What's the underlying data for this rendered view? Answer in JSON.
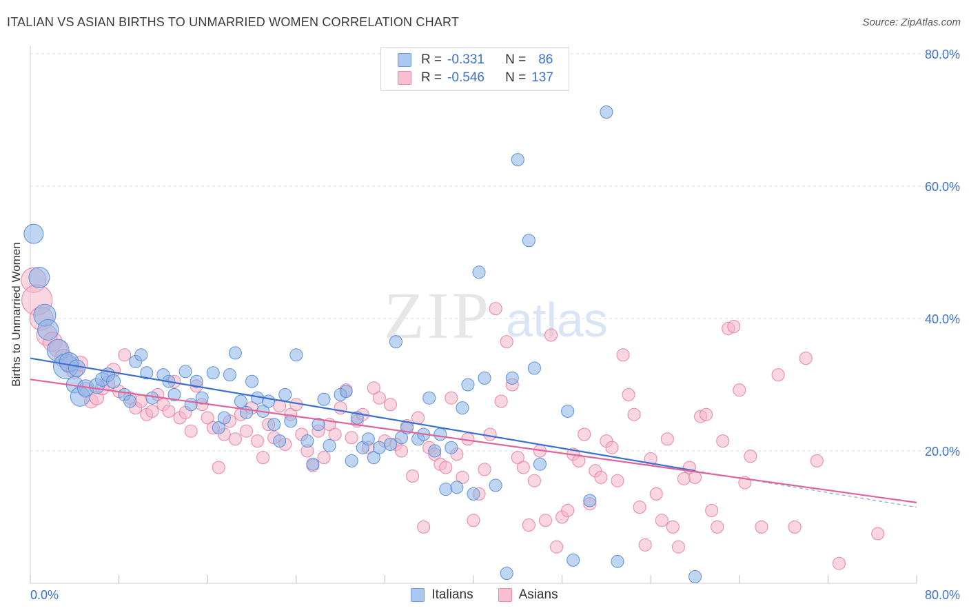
{
  "header": {
    "title": "ITALIAN VS ASIAN BIRTHS TO UNMARRIED WOMEN CORRELATION CHART",
    "source": "Source: ZipAtlas.com"
  },
  "watermark": {
    "zip": "ZIP",
    "atlas": "atlas"
  },
  "legend": {
    "r_label": "R =",
    "n_label": "N =",
    "rows": [
      {
        "r": "-0.331",
        "n": "86",
        "color": "#aac8f2",
        "border": "#6d9be0"
      },
      {
        "r": "-0.546",
        "n": "137",
        "color": "#f7bfd0",
        "border": "#e68aa8"
      }
    ]
  },
  "chart_data": {
    "type": "scatter",
    "title": "ITALIAN VS ASIAN BIRTHS TO UNMARRIED WOMEN CORRELATION CHART",
    "ylabel": "Births to Unmarried Women",
    "xlabel": "",
    "xlim": [
      0,
      80
    ],
    "ylim": [
      0,
      80
    ],
    "x_tick_labels": [
      "0.0%",
      "80.0%"
    ],
    "y_tick_labels": [
      "20.0%",
      "40.0%",
      "60.0%",
      "80.0%"
    ],
    "y_ticks": [
      20,
      40,
      60,
      80
    ],
    "grid": "horizontal dashed",
    "legend_position": "top-center",
    "series": [
      {
        "name": "Italians",
        "color": "#8bb4ea",
        "stroke": "#5d8fd8",
        "line_color": "#3a6fd0",
        "trend": {
          "x0": 0,
          "y0": 34.0,
          "x1": 60,
          "y1": 17.0,
          "dashed_to_x": 80,
          "dashed_to_y": 11.5
        },
        "points": [
          [
            0.3,
            52.8,
            14
          ],
          [
            0.8,
            46.2,
            15
          ],
          [
            1.3,
            40.5,
            16
          ],
          [
            1.6,
            38.3,
            15
          ],
          [
            2.5,
            35.2,
            16
          ],
          [
            3.2,
            32.8,
            18
          ],
          [
            3.5,
            33.4,
            14
          ],
          [
            4.0,
            30.0,
            12
          ],
          [
            4.2,
            32.5,
            12
          ],
          [
            4.5,
            28.2,
            14
          ],
          [
            5.0,
            29.5,
            12
          ],
          [
            6.0,
            29.8,
            11
          ],
          [
            6.5,
            30.8,
            10
          ],
          [
            7.0,
            31.5,
            10
          ],
          [
            7.5,
            30.5,
            10
          ],
          [
            8.5,
            28.5,
            9
          ],
          [
            9.0,
            27.5,
            9
          ],
          [
            9.5,
            33.5,
            9
          ],
          [
            10.0,
            34.5,
            9
          ],
          [
            10.5,
            31.8,
            9
          ],
          [
            11.0,
            28.0,
            9
          ],
          [
            12.0,
            31.5,
            9
          ],
          [
            12.5,
            30.5,
            9
          ],
          [
            13.0,
            28.5,
            9
          ],
          [
            14.0,
            32.0,
            9
          ],
          [
            14.5,
            27.0,
            9
          ],
          [
            15.0,
            30.5,
            9
          ],
          [
            15.5,
            28.0,
            9
          ],
          [
            16.5,
            31.8,
            9
          ],
          [
            17.0,
            23.5,
            9
          ],
          [
            17.5,
            25.0,
            9
          ],
          [
            18.0,
            31.5,
            9
          ],
          [
            18.5,
            34.8,
            9
          ],
          [
            19.0,
            27.5,
            9
          ],
          [
            19.5,
            25.8,
            9
          ],
          [
            20.0,
            30.5,
            9
          ],
          [
            20.5,
            28.0,
            9
          ],
          [
            21.0,
            26.0,
            9
          ],
          [
            21.5,
            27.5,
            9
          ],
          [
            22.0,
            24.0,
            9
          ],
          [
            22.5,
            21.5,
            9
          ],
          [
            23.0,
            28.5,
            9
          ],
          [
            23.5,
            24.5,
            9
          ],
          [
            24.0,
            34.5,
            9
          ],
          [
            25.0,
            21.5,
            9
          ],
          [
            25.5,
            18.0,
            9
          ],
          [
            26.0,
            24.0,
            9
          ],
          [
            26.5,
            27.8,
            9
          ],
          [
            27.0,
            20.8,
            9
          ],
          [
            28.0,
            28.5,
            9
          ],
          [
            28.5,
            29.0,
            9
          ],
          [
            29.0,
            18.5,
            9
          ],
          [
            29.5,
            25.0,
            9
          ],
          [
            30.0,
            20.5,
            9
          ],
          [
            30.5,
            21.8,
            9
          ],
          [
            31.0,
            19.0,
            9
          ],
          [
            31.5,
            20.5,
            9
          ],
          [
            32.5,
            21.0,
            9
          ],
          [
            33.0,
            36.5,
            9
          ],
          [
            33.5,
            22.0,
            9
          ],
          [
            34.0,
            23.5,
            9
          ],
          [
            35.0,
            21.8,
            9
          ],
          [
            35.5,
            22.5,
            9
          ],
          [
            36.0,
            28.0,
            9
          ],
          [
            36.5,
            20.0,
            9
          ],
          [
            37.0,
            22.5,
            9
          ],
          [
            37.5,
            14.2,
            9
          ],
          [
            38.0,
            20.5,
            9
          ],
          [
            38.5,
            14.5,
            9
          ],
          [
            39.0,
            26.5,
            9
          ],
          [
            39.5,
            30.0,
            9
          ],
          [
            40.0,
            13.5,
            9
          ],
          [
            40.5,
            47.0,
            9
          ],
          [
            41.0,
            31.0,
            9
          ],
          [
            42.0,
            14.8,
            9
          ],
          [
            43.0,
            1.5,
            9
          ],
          [
            43.5,
            31.0,
            9
          ],
          [
            44.0,
            64.0,
            9
          ],
          [
            45.0,
            51.8,
            9
          ],
          [
            45.5,
            32.5,
            9
          ],
          [
            46.0,
            18.0,
            9
          ],
          [
            48.5,
            26.0,
            9
          ],
          [
            49.0,
            3.5,
            9
          ],
          [
            50.5,
            12.5,
            9
          ],
          [
            52.0,
            71.2,
            9
          ],
          [
            53.0,
            3.3,
            9
          ],
          [
            60.0,
            1.0,
            9
          ]
        ]
      },
      {
        "name": "Asians",
        "color": "#f5b5c9",
        "stroke": "#e784a4",
        "line_color": "#e0649a",
        "trend": {
          "x0": 0,
          "y0": 30.8,
          "x1": 80,
          "y1": 12.2
        },
        "points": [
          [
            0.3,
            45.8,
            18
          ],
          [
            0.6,
            42.8,
            22
          ],
          [
            1.0,
            40.0,
            17
          ],
          [
            1.5,
            37.5,
            15
          ],
          [
            2.0,
            36.5,
            14
          ],
          [
            2.5,
            35.5,
            13
          ],
          [
            3.0,
            34.0,
            13
          ],
          [
            3.5,
            33.0,
            12
          ],
          [
            4.0,
            32.2,
            12
          ],
          [
            4.5,
            33.2,
            11
          ],
          [
            5.0,
            29.2,
            11
          ],
          [
            5.5,
            27.5,
            10
          ],
          [
            6.0,
            28.0,
            10
          ],
          [
            6.5,
            29.5,
            10
          ],
          [
            7.0,
            30.2,
            10
          ],
          [
            7.5,
            32.2,
            10
          ],
          [
            8.0,
            29.0,
            9
          ],
          [
            8.5,
            34.5,
            9
          ],
          [
            9.0,
            28.0,
            9
          ],
          [
            9.5,
            26.5,
            9
          ],
          [
            10.0,
            27.5,
            9
          ],
          [
            10.5,
            25.5,
            9
          ],
          [
            11.0,
            26.0,
            9
          ],
          [
            11.5,
            28.5,
            9
          ],
          [
            12.0,
            27.0,
            9
          ],
          [
            12.5,
            26.0,
            9
          ],
          [
            13.0,
            30.5,
            9
          ],
          [
            13.5,
            25.0,
            9
          ],
          [
            14.0,
            25.8,
            9
          ],
          [
            14.5,
            23.0,
            9
          ],
          [
            15.0,
            29.8,
            9
          ],
          [
            15.5,
            27.0,
            9
          ],
          [
            16.0,
            25.0,
            9
          ],
          [
            16.5,
            23.5,
            9
          ],
          [
            17.0,
            17.5,
            9
          ],
          [
            17.5,
            22.5,
            9
          ],
          [
            18.0,
            24.5,
            9
          ],
          [
            18.5,
            21.8,
            9
          ],
          [
            19.0,
            25.5,
            9
          ],
          [
            19.5,
            23.0,
            9
          ],
          [
            20.0,
            26.5,
            9
          ],
          [
            20.5,
            21.5,
            9
          ],
          [
            21.0,
            19.0,
            9
          ],
          [
            21.5,
            24.0,
            9
          ],
          [
            22.0,
            22.0,
            9
          ],
          [
            22.5,
            26.8,
            9
          ],
          [
            23.0,
            21.0,
            9
          ],
          [
            23.5,
            25.5,
            9
          ],
          [
            24.0,
            27.0,
            9
          ],
          [
            24.5,
            22.5,
            9
          ],
          [
            25.0,
            20.0,
            9
          ],
          [
            25.5,
            17.8,
            9
          ],
          [
            26.0,
            23.0,
            9
          ],
          [
            26.5,
            19.0,
            9
          ],
          [
            27.0,
            24.0,
            9
          ],
          [
            27.5,
            22.5,
            9
          ],
          [
            28.0,
            26.5,
            9
          ],
          [
            28.5,
            29.2,
            9
          ],
          [
            29.0,
            22.0,
            9
          ],
          [
            29.5,
            24.5,
            9
          ],
          [
            30.0,
            25.5,
            9
          ],
          [
            30.5,
            20.5,
            9
          ],
          [
            31.0,
            29.5,
            9
          ],
          [
            31.5,
            28.0,
            9
          ],
          [
            32.0,
            21.5,
            9
          ],
          [
            32.5,
            27.0,
            9
          ],
          [
            33.0,
            21.0,
            9
          ],
          [
            33.5,
            20.0,
            9
          ],
          [
            34.0,
            23.8,
            9
          ],
          [
            34.5,
            16.2,
            9
          ],
          [
            35.0,
            25.0,
            9
          ],
          [
            35.5,
            8.5,
            9
          ],
          [
            36.0,
            20.5,
            9
          ],
          [
            36.5,
            19.5,
            9
          ],
          [
            37.0,
            18.0,
            9
          ],
          [
            37.5,
            17.5,
            9
          ],
          [
            38.0,
            28.0,
            9
          ],
          [
            38.5,
            19.5,
            9
          ],
          [
            39.0,
            16.0,
            9
          ],
          [
            39.5,
            21.8,
            9
          ],
          [
            40.0,
            9.5,
            9
          ],
          [
            40.5,
            13.5,
            9
          ],
          [
            41.0,
            17.2,
            9
          ],
          [
            41.5,
            22.5,
            9
          ],
          [
            42.0,
            41.5,
            9
          ],
          [
            42.5,
            27.5,
            9
          ],
          [
            43.0,
            36.5,
            9
          ],
          [
            43.5,
            30.0,
            9
          ],
          [
            44.0,
            19.0,
            9
          ],
          [
            44.5,
            17.5,
            9
          ],
          [
            45.0,
            8.8,
            9
          ],
          [
            45.5,
            15.5,
            9
          ],
          [
            46.0,
            20.0,
            9
          ],
          [
            46.5,
            9.5,
            9
          ],
          [
            47.0,
            37.5,
            9
          ],
          [
            47.5,
            5.5,
            9
          ],
          [
            48.0,
            10.0,
            9
          ],
          [
            48.5,
            11.0,
            9
          ],
          [
            49.0,
            19.5,
            9
          ],
          [
            49.5,
            18.5,
            9
          ],
          [
            50.0,
            22.5,
            9
          ],
          [
            50.5,
            12.0,
            9
          ],
          [
            51.0,
            17.0,
            9
          ],
          [
            51.5,
            16.0,
            9
          ],
          [
            52.0,
            21.5,
            9
          ],
          [
            52.5,
            20.5,
            9
          ],
          [
            53.0,
            15.5,
            9
          ],
          [
            53.5,
            34.5,
            9
          ],
          [
            54.0,
            28.5,
            9
          ],
          [
            54.5,
            25.5,
            9
          ],
          [
            55.0,
            11.5,
            9
          ],
          [
            55.5,
            5.8,
            9
          ],
          [
            56.0,
            18.8,
            9
          ],
          [
            56.5,
            13.5,
            9
          ],
          [
            57.0,
            9.5,
            9
          ],
          [
            57.5,
            21.8,
            9
          ],
          [
            58.0,
            8.5,
            9
          ],
          [
            58.5,
            5.5,
            9
          ],
          [
            59.0,
            15.8,
            9
          ],
          [
            59.5,
            17.5,
            9
          ],
          [
            60.0,
            16.0,
            9
          ],
          [
            60.5,
            25.2,
            9
          ],
          [
            61.0,
            25.5,
            9
          ],
          [
            61.5,
            11.0,
            9
          ],
          [
            62.0,
            8.5,
            9
          ],
          [
            62.5,
            21.5,
            9
          ],
          [
            63.0,
            38.5,
            9
          ],
          [
            63.5,
            38.8,
            9
          ],
          [
            64.0,
            29.2,
            9
          ],
          [
            64.5,
            15.2,
            9
          ],
          [
            65.0,
            19.2,
            9
          ],
          [
            66.0,
            8.5,
            9
          ],
          [
            67.5,
            31.5,
            9
          ],
          [
            69.0,
            8.5,
            9
          ],
          [
            70.0,
            34.0,
            9
          ],
          [
            71.0,
            18.5,
            9
          ],
          [
            73.0,
            3.0,
            9
          ],
          [
            76.5,
            7.5,
            9
          ]
        ]
      }
    ]
  },
  "bottom_legend": [
    "Italians",
    "Asians"
  ]
}
